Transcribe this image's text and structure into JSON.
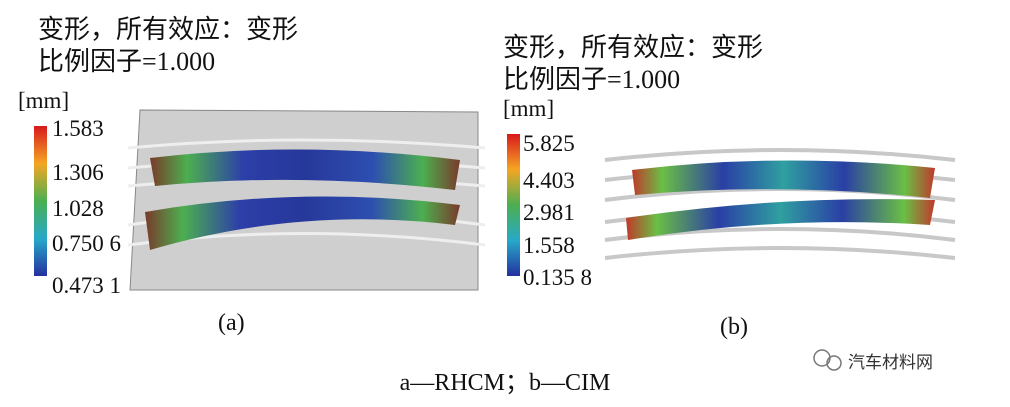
{
  "panels": [
    {
      "title_lines": [
        "变形，所有效应：变形",
        "比例因子=1.000"
      ],
      "unit": "[mm]",
      "scale_labels": [
        "1.583",
        "1.306",
        "1.028",
        "0.750 6",
        "0.473 1"
      ],
      "label": "(a)"
    },
    {
      "title_lines": [
        "变形，所有效应：变形",
        "比例因子=1.000"
      ],
      "unit": "[mm]",
      "scale_labels": [
        "5.825",
        "4.403",
        "2.981",
        "1.558",
        "0.135 8"
      ],
      "label": "(b)"
    }
  ],
  "caption": "a—RHCM；b—CIM",
  "watermark": "汽车材料网"
}
